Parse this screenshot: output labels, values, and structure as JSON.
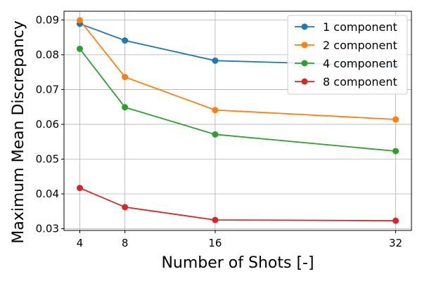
{
  "chart_data": {
    "type": "line",
    "xlabel": "Number of Shots [-]",
    "ylabel": "Maximum Mean Discrepancy",
    "x": [
      4,
      8,
      16,
      32
    ],
    "xticks": [
      "4",
      "8",
      "16",
      "32"
    ],
    "yticks": [
      "0.03",
      "0.04",
      "0.05",
      "0.06",
      "0.07",
      "0.08",
      "0.09"
    ],
    "xlim": [
      2.6,
      33.4
    ],
    "ylim": [
      0.0295,
      0.0925
    ],
    "grid": true,
    "legend_position": "top-right",
    "series": [
      {
        "name": "1 component",
        "color": "#1f77b4",
        "values": [
          0.0889,
          0.0841,
          0.0783,
          0.0768
        ]
      },
      {
        "name": "2 component",
        "color": "#ff7f0e",
        "values": [
          0.0899,
          0.0736,
          0.0641,
          0.0614
        ]
      },
      {
        "name": "4 component",
        "color": "#2ca02c",
        "values": [
          0.0817,
          0.0649,
          0.0571,
          0.0523
        ]
      },
      {
        "name": "8 component",
        "color": "#d62728",
        "values": [
          0.0417,
          0.0362,
          0.0325,
          0.0323
        ]
      }
    ]
  }
}
